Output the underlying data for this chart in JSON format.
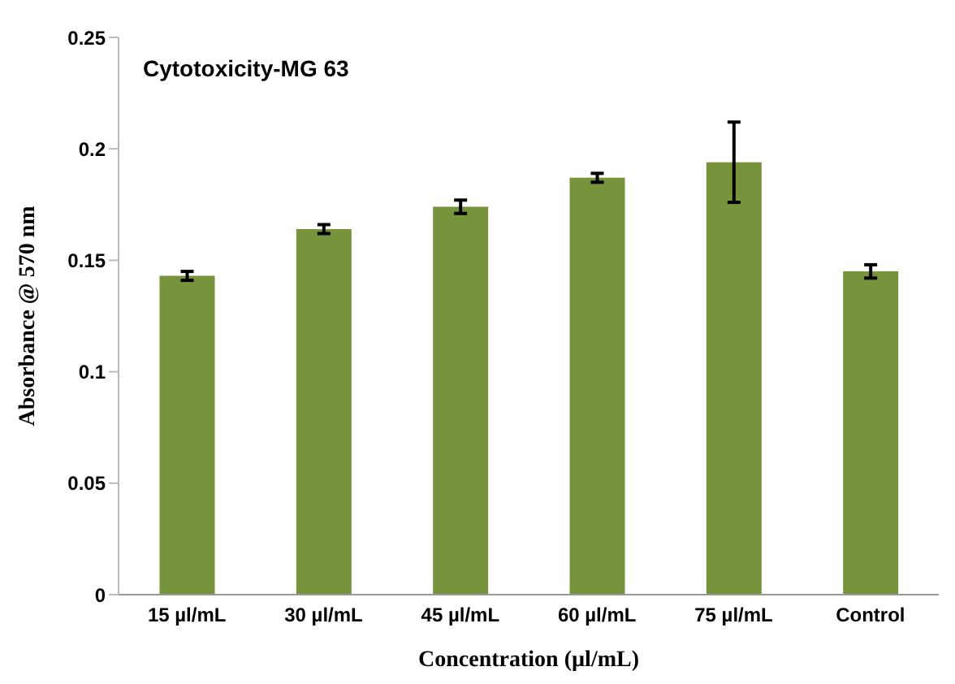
{
  "chart_data": {
    "type": "bar",
    "title": "Cytotoxicity-MG 63",
    "xlabel": "Concentration (µl/mL)",
    "ylabel": "Absorbance @ 570 nm",
    "categories": [
      "15 µl/mL",
      "30 µl/mL",
      "45 µl/mL",
      "60 µl/mL",
      "75 µl/mL",
      "Control"
    ],
    "values": [
      0.143,
      0.164,
      0.174,
      0.187,
      0.194,
      0.145
    ],
    "errors": [
      0.002,
      0.002,
      0.003,
      0.002,
      0.018,
      0.003
    ],
    "color": "#77933c",
    "ylim": [
      0,
      0.25
    ],
    "yticks": [
      0,
      0.05,
      0.1,
      0.15,
      0.2,
      0.25
    ],
    "grid": false,
    "legend": false
  }
}
